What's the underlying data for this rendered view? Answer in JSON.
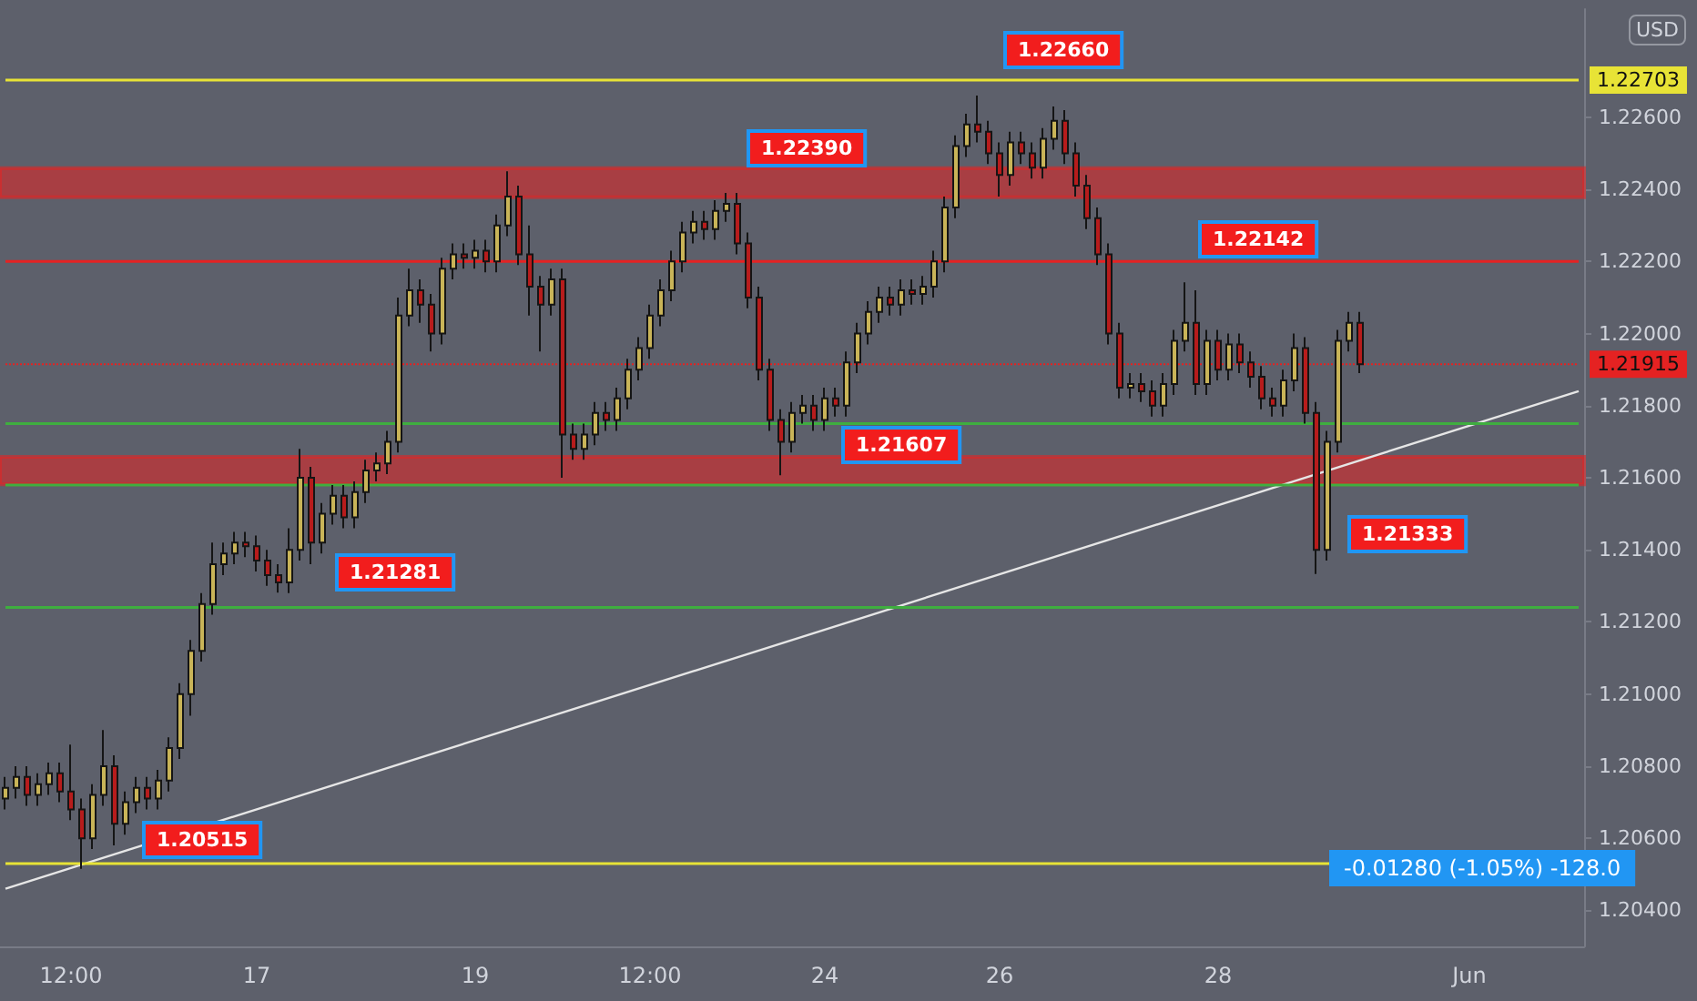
{
  "chart_data": {
    "type": "candlestick",
    "categories": [
      null,
      null,
      null,
      null,
      null,
      null,
      "12:00",
      null,
      null,
      null,
      null,
      null,
      null,
      null,
      null,
      null,
      null,
      null,
      null,
      null,
      null,
      null,
      null,
      "17",
      null,
      null,
      null,
      null,
      null,
      null,
      null,
      null,
      null,
      null,
      null,
      null,
      null,
      null,
      null,
      null,
      null,
      null,
      null,
      "19",
      null,
      null,
      null,
      null,
      null,
      null,
      null,
      null,
      null,
      null,
      null,
      null,
      null,
      null,
      null,
      "12:00",
      null,
      null,
      null,
      null,
      null,
      null,
      null,
      null,
      null,
      null,
      null,
      null,
      null,
      null,
      null,
      "24",
      null,
      null,
      null,
      null,
      null,
      null,
      null,
      null,
      null,
      null,
      null,
      null,
      null,
      null,
      null,
      "26",
      null,
      null,
      null,
      null,
      null,
      null,
      null,
      null,
      null,
      null,
      null,
      null,
      null,
      null,
      null,
      null,
      null,
      null,
      null,
      "28",
      null,
      null,
      null,
      null,
      null,
      null,
      null,
      null,
      null,
      null,
      null,
      null,
      null,
      null,
      null,
      null,
      null,
      null,
      null,
      null,
      null,
      null,
      "Jun",
      null,
      null,
      null,
      null,
      null,
      null,
      null,
      null,
      null,
      null
    ],
    "ohlc": [
      [
        1.2071,
        1.2077,
        1.2068,
        1.2074
      ],
      [
        1.2074,
        1.208,
        1.2071,
        1.2077
      ],
      [
        1.2077,
        1.208,
        1.2069,
        1.2072
      ],
      [
        1.2072,
        1.2078,
        1.2069,
        1.2075
      ],
      [
        1.2075,
        1.2081,
        1.2072,
        1.2078
      ],
      [
        1.2078,
        1.2081,
        1.207,
        1.2073
      ],
      [
        1.2073,
        1.2086,
        1.2065,
        1.2068
      ],
      [
        1.2068,
        1.2071,
        1.20515,
        1.206
      ],
      [
        1.206,
        1.2075,
        1.2057,
        1.2072
      ],
      [
        1.2072,
        1.209,
        1.2069,
        1.208
      ],
      [
        1.208,
        1.2083,
        1.2058,
        1.2064
      ],
      [
        1.2064,
        1.2073,
        1.2061,
        1.207
      ],
      [
        1.207,
        1.2077,
        1.2067,
        1.2074
      ],
      [
        1.2074,
        1.2077,
        1.2068,
        1.2071
      ],
      [
        1.2071,
        1.2079,
        1.2068,
        1.2076
      ],
      [
        1.2076,
        1.2088,
        1.2073,
        1.2085
      ],
      [
        1.2085,
        1.2103,
        1.2082,
        1.21
      ],
      [
        1.21,
        1.2115,
        1.2094,
        1.2112
      ],
      [
        1.2112,
        1.2128,
        1.2109,
        1.2125
      ],
      [
        1.2125,
        1.2142,
        1.2122,
        1.2136
      ],
      [
        1.2136,
        1.2142,
        1.2133,
        1.2139
      ],
      [
        1.2139,
        1.2145,
        1.2136,
        1.2142
      ],
      [
        1.2142,
        1.2145,
        1.2138,
        1.2141
      ],
      [
        1.2141,
        1.2144,
        1.2134,
        1.2137
      ],
      [
        1.2137,
        1.214,
        1.213,
        1.2133
      ],
      [
        1.2133,
        1.2136,
        1.21281,
        1.2131
      ],
      [
        1.2131,
        1.2146,
        1.2128,
        1.214
      ],
      [
        1.214,
        1.2168,
        1.2137,
        1.216
      ],
      [
        1.216,
        1.2163,
        1.2136,
        1.2142
      ],
      [
        1.2142,
        1.2153,
        1.2139,
        1.215
      ],
      [
        1.215,
        1.2158,
        1.2147,
        1.2155
      ],
      [
        1.2155,
        1.2158,
        1.2146,
        1.2149
      ],
      [
        1.2149,
        1.2159,
        1.2146,
        1.2156
      ],
      [
        1.2156,
        1.2165,
        1.2153,
        1.2162
      ],
      [
        1.2162,
        1.2167,
        1.2159,
        1.2164
      ],
      [
        1.2164,
        1.2173,
        1.2161,
        1.217
      ],
      [
        1.217,
        1.221,
        1.2167,
        1.2205
      ],
      [
        1.2205,
        1.2218,
        1.2202,
        1.2212
      ],
      [
        1.2212,
        1.2215,
        1.2203,
        1.2208
      ],
      [
        1.2208,
        1.2211,
        1.2195,
        1.22
      ],
      [
        1.22,
        1.2221,
        1.2197,
        1.2218
      ],
      [
        1.2218,
        1.2225,
        1.2215,
        1.2222
      ],
      [
        1.2222,
        1.2225,
        1.2218,
        1.2221
      ],
      [
        1.2221,
        1.2226,
        1.2218,
        1.2223
      ],
      [
        1.2223,
        1.2226,
        1.2217,
        1.222
      ],
      [
        1.222,
        1.2233,
        1.2217,
        1.223
      ],
      [
        1.223,
        1.2245,
        1.2227,
        1.2238
      ],
      [
        1.2238,
        1.2241,
        1.2219,
        1.2222
      ],
      [
        1.2222,
        1.223,
        1.2205,
        1.2213
      ],
      [
        1.2213,
        1.2216,
        1.2195,
        1.2208
      ],
      [
        1.2208,
        1.2218,
        1.2205,
        1.2215
      ],
      [
        1.2215,
        1.2218,
        1.216,
        1.2172
      ],
      [
        1.2172,
        1.2175,
        1.2165,
        1.2168
      ],
      [
        1.2168,
        1.2175,
        1.2165,
        1.2172
      ],
      [
        1.2172,
        1.2181,
        1.2169,
        1.2178
      ],
      [
        1.2178,
        1.2181,
        1.2173,
        1.2176
      ],
      [
        1.2176,
        1.2185,
        1.2173,
        1.2182
      ],
      [
        1.2182,
        1.2193,
        1.2179,
        1.219
      ],
      [
        1.219,
        1.2199,
        1.2187,
        1.2196
      ],
      [
        1.2196,
        1.2208,
        1.2193,
        1.2205
      ],
      [
        1.2205,
        1.2215,
        1.2202,
        1.2212
      ],
      [
        1.2212,
        1.2223,
        1.2209,
        1.222
      ],
      [
        1.222,
        1.2231,
        1.2217,
        1.2228
      ],
      [
        1.2228,
        1.2234,
        1.2225,
        1.2231
      ],
      [
        1.2231,
        1.2234,
        1.2226,
        1.2229
      ],
      [
        1.2229,
        1.2237,
        1.2226,
        1.2234
      ],
      [
        1.2234,
        1.2239,
        1.2231,
        1.2236
      ],
      [
        1.2236,
        1.2239,
        1.2222,
        1.2225
      ],
      [
        1.2225,
        1.2228,
        1.2207,
        1.221
      ],
      [
        1.221,
        1.2213,
        1.2187,
        1.219
      ],
      [
        1.219,
        1.2193,
        1.2173,
        1.2176
      ],
      [
        1.2176,
        1.2179,
        1.21607,
        1.217
      ],
      [
        1.217,
        1.2181,
        1.2167,
        1.2178
      ],
      [
        1.2178,
        1.2183,
        1.2175,
        1.218
      ],
      [
        1.218,
        1.2183,
        1.2173,
        1.2176
      ],
      [
        1.2176,
        1.2185,
        1.2173,
        1.2182
      ],
      [
        1.2182,
        1.2185,
        1.2177,
        1.218
      ],
      [
        1.218,
        1.2195,
        1.2177,
        1.2192
      ],
      [
        1.2192,
        1.2203,
        1.2189,
        1.22
      ],
      [
        1.22,
        1.2209,
        1.2197,
        1.2206
      ],
      [
        1.2206,
        1.2213,
        1.2203,
        1.221
      ],
      [
        1.221,
        1.2213,
        1.2205,
        1.2208
      ],
      [
        1.2208,
        1.2215,
        1.2205,
        1.2212
      ],
      [
        1.2212,
        1.2215,
        1.2208,
        1.2211
      ],
      [
        1.2211,
        1.2216,
        1.2208,
        1.2213
      ],
      [
        1.2213,
        1.2223,
        1.221,
        1.222
      ],
      [
        1.222,
        1.2238,
        1.2217,
        1.2235
      ],
      [
        1.2235,
        1.2255,
        1.2232,
        1.2252
      ],
      [
        1.2252,
        1.2261,
        1.2249,
        1.2258
      ],
      [
        1.2258,
        1.2266,
        1.2253,
        1.2256
      ],
      [
        1.2256,
        1.2259,
        1.2247,
        1.225
      ],
      [
        1.225,
        1.2253,
        1.2238,
        1.2244
      ],
      [
        1.2244,
        1.2256,
        1.2241,
        1.2253
      ],
      [
        1.2253,
        1.2256,
        1.2247,
        1.225
      ],
      [
        1.225,
        1.2253,
        1.2243,
        1.2246
      ],
      [
        1.2246,
        1.2257,
        1.2243,
        1.2254
      ],
      [
        1.2254,
        1.2263,
        1.2251,
        1.2259
      ],
      [
        1.2259,
        1.2262,
        1.2247,
        1.225
      ],
      [
        1.225,
        1.2253,
        1.2238,
        1.2241
      ],
      [
        1.2241,
        1.2244,
        1.2229,
        1.2232
      ],
      [
        1.2232,
        1.2235,
        1.2219,
        1.2222
      ],
      [
        1.2222,
        1.2225,
        1.2197,
        1.22
      ],
      [
        1.22,
        1.2203,
        1.2182,
        1.2185
      ],
      [
        1.2185,
        1.2189,
        1.2182,
        1.2186
      ],
      [
        1.2186,
        1.2189,
        1.2181,
        1.2184
      ],
      [
        1.2184,
        1.2187,
        1.2177,
        1.218
      ],
      [
        1.218,
        1.2189,
        1.2177,
        1.2186
      ],
      [
        1.2186,
        1.2201,
        1.2183,
        1.2198
      ],
      [
        1.2198,
        1.22142,
        1.2195,
        1.2203
      ],
      [
        1.2203,
        1.2212,
        1.2183,
        1.2186
      ],
      [
        1.2186,
        1.2201,
        1.2183,
        1.2198
      ],
      [
        1.2198,
        1.2201,
        1.2187,
        1.219
      ],
      [
        1.219,
        1.22,
        1.2187,
        1.2197
      ],
      [
        1.2197,
        1.22,
        1.2189,
        1.2192
      ],
      [
        1.2192,
        1.2195,
        1.2185,
        1.2188
      ],
      [
        1.2188,
        1.2191,
        1.2179,
        1.2182
      ],
      [
        1.2182,
        1.2185,
        1.2177,
        1.218
      ],
      [
        1.218,
        1.219,
        1.2177,
        1.2187
      ],
      [
        1.2187,
        1.22,
        1.2184,
        1.2196
      ],
      [
        1.2196,
        1.2199,
        1.2175,
        1.2178
      ],
      [
        1.2178,
        1.2181,
        1.21333,
        1.214
      ],
      [
        1.214,
        1.2173,
        1.2137,
        1.217
      ],
      [
        1.217,
        1.2201,
        1.2167,
        1.2198
      ],
      [
        1.2198,
        1.2206,
        1.2195,
        1.2203
      ],
      [
        1.2203,
        1.2206,
        1.2189,
        1.21915
      ],
      null,
      null,
      null,
      null,
      null,
      null,
      null,
      null,
      null,
      null,
      null,
      null,
      null,
      null,
      null,
      null,
      null,
      null,
      null,
      null
    ],
    "colors": [
      "#c9b458",
      "#c9b458",
      "#b71c1c",
      "#c9b458",
      "#c9b458",
      "#b71c1c",
      "#b71c1c",
      "#b71c1c",
      "#c9b458",
      "#c9b458",
      "#b71c1c",
      "#c9b458",
      "#c9b458",
      "#b71c1c",
      "#c9b458",
      "#c9b458",
      "#c9b458",
      "#c9b458",
      "#c9b458",
      "#c9b458",
      "#c9b458",
      "#c9b458",
      "#b71c1c",
      "#b71c1c",
      "#b71c1c",
      "#b71c1c",
      "#c9b458",
      "#c9b458",
      "#b71c1c",
      "#c9b458",
      "#c9b458",
      "#b71c1c",
      "#c9b458",
      "#c9b458",
      "#c9b458",
      "#c9b458",
      "#c9b458",
      "#c9b458",
      "#b71c1c",
      "#b71c1c",
      "#c9b458",
      "#c9b458",
      "#b71c1c",
      "#c9b458",
      "#b71c1c",
      "#c9b458",
      "#c9b458",
      "#b71c1c",
      "#b71c1c",
      "#b71c1c",
      "#c9b458",
      "#b71c1c",
      "#b71c1c",
      "#c9b458",
      "#c9b458",
      "#b71c1c",
      "#c9b458",
      "#c9b458",
      "#c9b458",
      "#c9b458",
      "#c9b458",
      "#c9b458",
      "#c9b458",
      "#c9b458",
      "#b71c1c",
      "#c9b458",
      "#c9b458",
      "#b71c1c",
      "#b71c1c",
      "#b71c1c",
      "#b71c1c",
      "#b71c1c",
      "#c9b458",
      "#c9b458",
      "#b71c1c",
      "#c9b458",
      "#b71c1c",
      "#c9b458",
      "#c9b458",
      "#c9b458",
      "#c9b458",
      "#b71c1c",
      "#c9b458",
      "#b71c1c",
      "#c9b458",
      "#c9b458",
      "#c9b458",
      "#c9b458",
      "#c9b458",
      "#b71c1c",
      "#b71c1c",
      "#b71c1c",
      "#c9b458",
      "#b71c1c",
      "#b71c1c",
      "#c9b458",
      "#c9b458",
      "#b71c1c",
      "#b71c1c",
      "#b71c1c",
      "#b71c1c",
      "#b71c1c",
      "#b71c1c",
      "#c9b458",
      "#b71c1c",
      "#b71c1c",
      "#c9b458",
      "#c9b458",
      "#c9b458",
      "#b71c1c",
      "#c9b458",
      "#b71c1c",
      "#c9b458",
      "#b71c1c",
      "#b71c1c",
      "#b71c1c",
      "#b71c1c",
      "#c9b458",
      "#c9b458",
      "#b71c1c",
      "#b71c1c",
      "#c9b458",
      "#c9b458",
      "#c9b458",
      "#b71c1c",
      null,
      null,
      null,
      null,
      null,
      null,
      null,
      null,
      null,
      null,
      null,
      null,
      null,
      null,
      null,
      null,
      null,
      null,
      null,
      null
    ],
    "ylim": [
      1.203,
      1.229
    ],
    "yticks": [
      {
        "value": 1.204,
        "label": "1.20400"
      },
      {
        "value": 1.206,
        "label": "1.20600"
      },
      {
        "value": 1.208,
        "label": "1.20800"
      },
      {
        "value": 1.21,
        "label": "1.21000"
      },
      {
        "value": 1.212,
        "label": "1.21200"
      },
      {
        "value": 1.214,
        "label": "1.21400"
      },
      {
        "value": 1.216,
        "label": "1.21600"
      },
      {
        "value": 1.218,
        "label": "1.21800"
      },
      {
        "value": 1.22,
        "label": "1.22000"
      },
      {
        "value": 1.222,
        "label": "1.22200"
      },
      {
        "value": 1.224,
        "label": "1.22400"
      },
      {
        "value": 1.226,
        "label": "1.22600"
      }
    ],
    "grid": false,
    "series": [
      {
        "type": "line",
        "color": "#e6e6e6",
        "values": [
          1.2046,
          null,
          null,
          null,
          null,
          null,
          null,
          null,
          null,
          null,
          null,
          null,
          null,
          null,
          null,
          null,
          null,
          null,
          null,
          null,
          null,
          null,
          null,
          null,
          null,
          null,
          null,
          null,
          null,
          null,
          null,
          null,
          null,
          null,
          null,
          null,
          null,
          null,
          null,
          null,
          null,
          null,
          null,
          null,
          null,
          null,
          null,
          null,
          null,
          null,
          null,
          null,
          null,
          null,
          null,
          null,
          null,
          null,
          null,
          null,
          null,
          null,
          null,
          null,
          null,
          null,
          null,
          null,
          null,
          null,
          null,
          null,
          null,
          null,
          null,
          null,
          null,
          null,
          null,
          null,
          null,
          null,
          null,
          null,
          null,
          null,
          null,
          null,
          null,
          null,
          null,
          null,
          null,
          null,
          null,
          null,
          null,
          null,
          null,
          null,
          null,
          null,
          null,
          null,
          null,
          null,
          null,
          null,
          null,
          null,
          null,
          null,
          null,
          null,
          null,
          null,
          null,
          null,
          null,
          null,
          null,
          null,
          null,
          null,
          null,
          null,
          null,
          null,
          null,
          null,
          null,
          null,
          null,
          null,
          null,
          null,
          null,
          null,
          null,
          null,
          null,
          null,
          null,
          null,
          1.2184
        ]
      }
    ],
    "ref_lines": [
      {
        "axis": "y",
        "value": 1.22703,
        "label": "1.22703",
        "color": "#e8e336",
        "line_style": "solid"
      },
      {
        "axis": "y",
        "value": 1.2053,
        "color": "#e8e336",
        "line_style": "solid"
      },
      {
        "axis": "y",
        "value": 1.222,
        "color": "#e52222",
        "line_style": "solid"
      },
      {
        "axis": "y",
        "value": 1.21915,
        "label": "1.21915",
        "color": "#e52222",
        "line_style": "dotted"
      },
      {
        "axis": "y",
        "value": 1.2124,
        "color": "#3fae3f",
        "line_style": "solid"
      },
      {
        "axis": "y",
        "value": 1.2175,
        "color": "#3fae3f",
        "line_style": "solid"
      },
      {
        "axis": "y",
        "value": 1.2158,
        "color": "#3fae3f",
        "line_style": "solid"
      }
    ],
    "bands": [
      {
        "axis": "y",
        "from": 1.22378,
        "to": 1.22459,
        "color": "#e52222"
      },
      {
        "axis": "y",
        "from": 1.21582,
        "to": 1.21658,
        "color": "#e52222"
      }
    ],
    "annotations": [
      "USD",
      "-0.01280 (-1.05%) -128.0",
      "1.22660",
      "1.22390",
      "1.22142",
      "1.21607",
      "1.21281",
      "1.21333",
      "1.20515"
    ]
  }
}
